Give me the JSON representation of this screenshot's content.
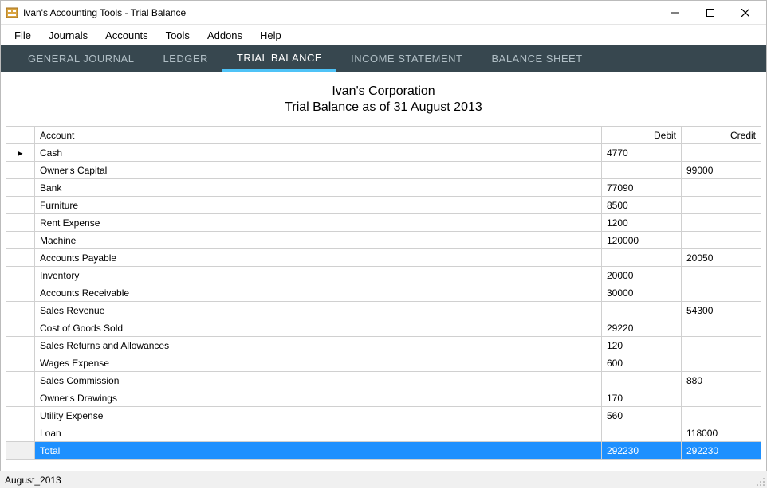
{
  "window": {
    "title": "Ivan's Accounting Tools - Trial Balance"
  },
  "menubar": {
    "items": [
      "File",
      "Journals",
      "Accounts",
      "Tools",
      "Addons",
      "Help"
    ]
  },
  "tabs": {
    "items": [
      {
        "label": "GENERAL JOURNAL",
        "active": false
      },
      {
        "label": "LEDGER",
        "active": false
      },
      {
        "label": "TRIAL BALANCE",
        "active": true
      },
      {
        "label": "INCOME STATEMENT",
        "active": false
      },
      {
        "label": "BALANCE SHEET",
        "active": false
      }
    ]
  },
  "report": {
    "company": "Ivan's Corporation",
    "subtitle": "Trial Balance as of 31 August 2013",
    "columns": {
      "account": "Account",
      "debit": "Debit",
      "credit": "Credit"
    },
    "rows": [
      {
        "indicator": "▸",
        "account": "Cash",
        "debit": "4770",
        "credit": ""
      },
      {
        "indicator": "",
        "account": "Owner's Capital",
        "debit": "",
        "credit": "99000"
      },
      {
        "indicator": "",
        "account": "Bank",
        "debit": "77090",
        "credit": ""
      },
      {
        "indicator": "",
        "account": "Furniture",
        "debit": "8500",
        "credit": ""
      },
      {
        "indicator": "",
        "account": "Rent Expense",
        "debit": "1200",
        "credit": ""
      },
      {
        "indicator": "",
        "account": "Machine",
        "debit": "120000",
        "credit": ""
      },
      {
        "indicator": "",
        "account": "Accounts Payable",
        "debit": "",
        "credit": "20050"
      },
      {
        "indicator": "",
        "account": "Inventory",
        "debit": "20000",
        "credit": ""
      },
      {
        "indicator": "",
        "account": "Accounts Receivable",
        "debit": "30000",
        "credit": ""
      },
      {
        "indicator": "",
        "account": "Sales Revenue",
        "debit": "",
        "credit": "54300"
      },
      {
        "indicator": "",
        "account": "Cost of Goods Sold",
        "debit": "29220",
        "credit": ""
      },
      {
        "indicator": "",
        "account": "Sales Returns and Allowances",
        "debit": "120",
        "credit": ""
      },
      {
        "indicator": "",
        "account": "Wages Expense",
        "debit": "600",
        "credit": ""
      },
      {
        "indicator": "",
        "account": "Sales Commission",
        "debit": "",
        "credit": "880"
      },
      {
        "indicator": "",
        "account": "Owner's Drawings",
        "debit": "170",
        "credit": ""
      },
      {
        "indicator": "",
        "account": "Utility Expense",
        "debit": "560",
        "credit": ""
      },
      {
        "indicator": "",
        "account": "Loan",
        "debit": "",
        "credit": "118000"
      }
    ],
    "total": {
      "label": "Total",
      "debit": "292230",
      "credit": "292230"
    }
  },
  "statusbar": {
    "text": "August_2013"
  },
  "colors": {
    "tabbar_bg": "#37474f",
    "tab_inactive_text": "#b0bec5",
    "tab_active_text": "#ffffff",
    "tab_active_underline": "#4fc3f7",
    "total_row_bg": "#1e90ff",
    "total_row_text": "#ffffff",
    "grid_border": "#d0d0d0"
  }
}
